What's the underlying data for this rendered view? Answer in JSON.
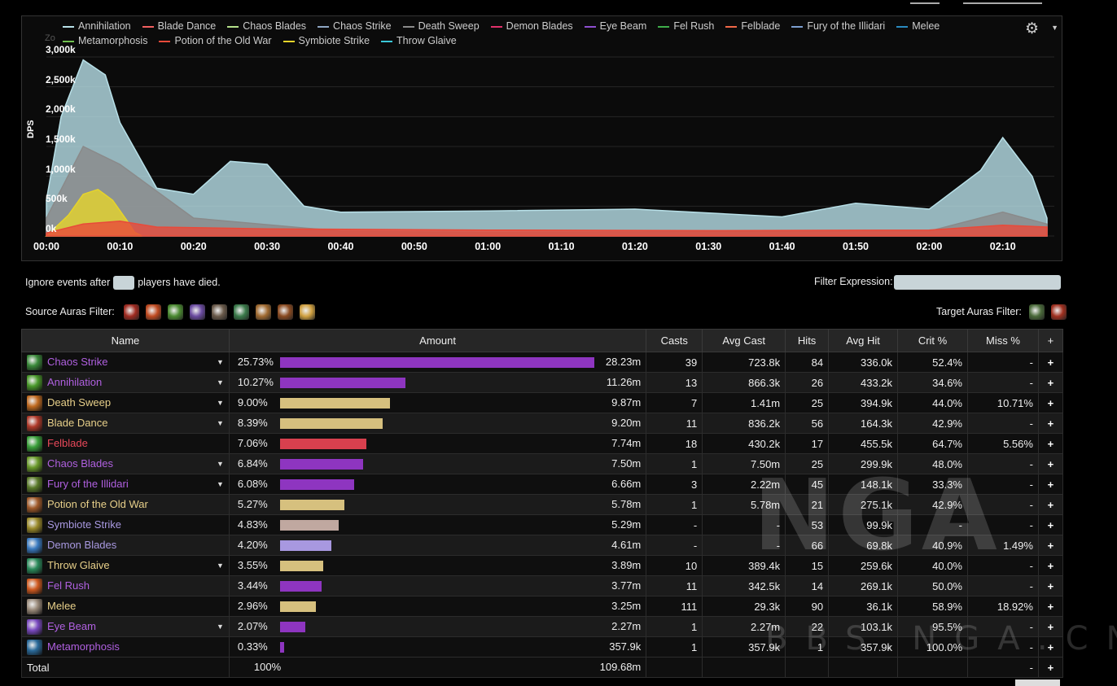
{
  "chart": {
    "ylabel": "DPS",
    "zoom_label": "Zo",
    "yticks": [
      "0k",
      "500k",
      "1,000k",
      "1,500k",
      "2,000k",
      "2,500k",
      "3,000k"
    ],
    "xticks": [
      "00:00",
      "00:10",
      "00:20",
      "00:30",
      "00:40",
      "00:50",
      "01:00",
      "01:10",
      "01:20",
      "01:30",
      "01:40",
      "01:50",
      "02:00",
      "02:10"
    ],
    "legend": [
      {
        "name": "Annihilation",
        "color": "#b8e0e8"
      },
      {
        "name": "Blade Dance",
        "color": "#f26060"
      },
      {
        "name": "Chaos Blades",
        "color": "#b5e08a"
      },
      {
        "name": "Chaos Strike",
        "color": "#8ea7c4"
      },
      {
        "name": "Death Sweep",
        "color": "#8a8a8a"
      },
      {
        "name": "Demon Blades",
        "color": "#e0306a"
      },
      {
        "name": "Eye Beam",
        "color": "#8e4fd0"
      },
      {
        "name": "Fel Rush",
        "color": "#3fae4a"
      },
      {
        "name": "Felblade",
        "color": "#f06848"
      },
      {
        "name": "Fury of the Illidari",
        "color": "#7c9ed0"
      },
      {
        "name": "Melee",
        "color": "#2a8ac0"
      },
      {
        "name": "Metamorphosis",
        "color": "#70c050"
      },
      {
        "name": "Potion of the Old War",
        "color": "#e84a3a"
      },
      {
        "name": "Symbiote Strike",
        "color": "#e6d42a"
      },
      {
        "name": "Throw Glaive",
        "color": "#3ac8d8"
      }
    ]
  },
  "chart_data": {
    "type": "area",
    "title": "",
    "xlabel": "",
    "ylabel": "DPS",
    "ylim": [
      0,
      3300
    ],
    "ylim_unit": "k",
    "xlim": [
      "00:00",
      "02:17"
    ],
    "series": [
      {
        "name": "Symbiote Strike",
        "x": [
          "00:00",
          "00:03",
          "00:05",
          "00:07",
          "00:09",
          "00:11",
          "00:12",
          "00:13"
        ],
        "values": [
          0,
          350,
          700,
          780,
          600,
          250,
          60,
          0
        ]
      },
      {
        "name": "Potion of the Old War",
        "x": [
          "00:00",
          "00:05",
          "00:10",
          "00:15",
          "00:30",
          "01:00",
          "01:30",
          "02:00",
          "02:10",
          "02:16"
        ],
        "values": [
          50,
          200,
          250,
          150,
          120,
          100,
          90,
          100,
          180,
          150
        ]
      },
      {
        "name": "Death Sweep",
        "x": [
          "00:00",
          "00:05",
          "00:10",
          "00:20",
          "00:40",
          "01:00",
          "02:00",
          "02:10",
          "02:16"
        ],
        "values": [
          300,
          1500,
          1200,
          300,
          80,
          60,
          80,
          400,
          200
        ]
      },
      {
        "name": "Annihilation",
        "x": [
          "00:00",
          "00:02",
          "00:05",
          "00:08",
          "00:10",
          "00:15",
          "00:20",
          "00:25",
          "00:30",
          "00:35",
          "00:40",
          "01:00",
          "01:20",
          "01:40",
          "01:50",
          "02:00",
          "02:07",
          "02:10",
          "02:14",
          "02:16"
        ],
        "values": [
          600,
          2000,
          2950,
          2700,
          1900,
          800,
          700,
          1250,
          1200,
          500,
          400,
          420,
          450,
          320,
          550,
          450,
          1100,
          1650,
          1000,
          300
        ]
      }
    ]
  },
  "filters": {
    "ignore_prefix": "Ignore events after",
    "ignore_suffix": "players have died.",
    "filter_expression_label": "Filter Expression:",
    "source_auras_label": "Source Auras Filter:",
    "target_auras_label": "Target Auras Filter:",
    "source_aura_colors": [
      "#a02a20",
      "#c04a20",
      "#4a8a30",
      "#6a4aa0",
      "#6a5a4a",
      "#3a7a4a",
      "#a06a30",
      "#8a4a20",
      "#d0a040"
    ],
    "target_aura_colors": [
      "#4a6a3a",
      "#a03020"
    ]
  },
  "table": {
    "headers": {
      "name": "Name",
      "amount": "Amount",
      "casts": "Casts",
      "avg_cast": "Avg Cast",
      "hits": "Hits",
      "avg_hit": "Avg Hit",
      "crit": "Crit %",
      "miss": "Miss %",
      "plus": "+"
    },
    "rows": [
      {
        "name": "Chaos Strike",
        "name_color": "#b060e0",
        "icon_color": "#3a8a3a",
        "caret": true,
        "pct": "25.73%",
        "bar_pct": 25.73,
        "bar_color": "#8e35c0",
        "amount": "28.23m",
        "casts": "39",
        "avg_cast": "723.8k",
        "hits": "84",
        "avg_hit": "336.0k",
        "crit": "52.4%",
        "miss": "-"
      },
      {
        "name": "Annihilation",
        "name_color": "#b060e0",
        "icon_color": "#4a9a2a",
        "caret": true,
        "pct": "10.27%",
        "bar_pct": 10.27,
        "bar_color": "#8e35c0",
        "amount": "11.26m",
        "casts": "13",
        "avg_cast": "866.3k",
        "hits": "26",
        "avg_hit": "433.2k",
        "crit": "34.6%",
        "miss": "-"
      },
      {
        "name": "Death Sweep",
        "name_color": "#e8d08a",
        "icon_color": "#c06a20",
        "caret": true,
        "pct": "9.00%",
        "bar_pct": 9.0,
        "bar_color": "#d6c07e",
        "amount": "9.87m",
        "casts": "7",
        "avg_cast": "1.41m",
        "hits": "25",
        "avg_hit": "394.9k",
        "crit": "44.0%",
        "miss": "10.71%"
      },
      {
        "name": "Blade Dance",
        "name_color": "#e8d08a",
        "icon_color": "#b03a2a",
        "caret": true,
        "pct": "8.39%",
        "bar_pct": 8.39,
        "bar_color": "#d6c07e",
        "amount": "9.20m",
        "casts": "11",
        "avg_cast": "836.2k",
        "hits": "56",
        "avg_hit": "164.3k",
        "crit": "42.9%",
        "miss": "-"
      },
      {
        "name": "Felblade",
        "name_color": "#e8485a",
        "icon_color": "#3aa03a",
        "caret": false,
        "pct": "7.06%",
        "bar_pct": 7.06,
        "bar_color": "#d8404e",
        "amount": "7.74m",
        "casts": "18",
        "avg_cast": "430.2k",
        "hits": "17",
        "avg_hit": "455.5k",
        "crit": "64.7%",
        "miss": "5.56%"
      },
      {
        "name": "Chaos Blades",
        "name_color": "#b060e0",
        "icon_color": "#6a9a2a",
        "caret": true,
        "pct": "6.84%",
        "bar_pct": 6.84,
        "bar_color": "#8e35c0",
        "amount": "7.50m",
        "casts": "1",
        "avg_cast": "7.50m",
        "hits": "25",
        "avg_hit": "299.9k",
        "crit": "48.0%",
        "miss": "-"
      },
      {
        "name": "Fury of the Illidari",
        "name_color": "#b060e0",
        "icon_color": "#5a7a2a",
        "caret": true,
        "pct": "6.08%",
        "bar_pct": 6.08,
        "bar_color": "#8e35c0",
        "amount": "6.66m",
        "casts": "3",
        "avg_cast": "2.22m",
        "hits": "45",
        "avg_hit": "148.1k",
        "crit": "33.3%",
        "miss": "-"
      },
      {
        "name": "Potion of the Old War",
        "name_color": "#e8d08a",
        "icon_color": "#a05a2a",
        "caret": false,
        "pct": "5.27%",
        "bar_pct": 5.27,
        "bar_color": "#d6c07e",
        "amount": "5.78m",
        "casts": "1",
        "avg_cast": "5.78m",
        "hits": "21",
        "avg_hit": "275.1k",
        "crit": "42.9%",
        "miss": "-"
      },
      {
        "name": "Symbiote Strike",
        "name_color": "#a898e0",
        "icon_color": "#9a8a2a",
        "caret": false,
        "pct": "4.83%",
        "bar_pct": 4.83,
        "bar_color": "#c0a8a0",
        "amount": "5.29m",
        "casts": "-",
        "avg_cast": "-",
        "hits": "53",
        "avg_hit": "99.9k",
        "crit": "-",
        "miss": "-"
      },
      {
        "name": "Demon Blades",
        "name_color": "#a898e0",
        "icon_color": "#3a7ac0",
        "caret": false,
        "pct": "4.20%",
        "bar_pct": 4.2,
        "bar_color": "#a898e0",
        "amount": "4.61m",
        "casts": "-",
        "avg_cast": "-",
        "hits": "66",
        "avg_hit": "69.8k",
        "crit": "40.9%",
        "miss": "1.49%"
      },
      {
        "name": "Throw Glaive",
        "name_color": "#e8d08a",
        "icon_color": "#2a8a5a",
        "caret": true,
        "pct": "3.55%",
        "bar_pct": 3.55,
        "bar_color": "#d6c07e",
        "amount": "3.89m",
        "casts": "10",
        "avg_cast": "389.4k",
        "hits": "15",
        "avg_hit": "259.6k",
        "crit": "40.0%",
        "miss": "-"
      },
      {
        "name": "Fel Rush",
        "name_color": "#b060e0",
        "icon_color": "#d05a20",
        "caret": false,
        "pct": "3.44%",
        "bar_pct": 3.44,
        "bar_color": "#8e35c0",
        "amount": "3.77m",
        "casts": "11",
        "avg_cast": "342.5k",
        "hits": "14",
        "avg_hit": "269.1k",
        "crit": "50.0%",
        "miss": "-"
      },
      {
        "name": "Melee",
        "name_color": "#e8d08a",
        "icon_color": "#9a8a7a",
        "caret": false,
        "pct": "2.96%",
        "bar_pct": 2.96,
        "bar_color": "#d6c07e",
        "amount": "3.25m",
        "casts": "111",
        "avg_cast": "29.3k",
        "hits": "90",
        "avg_hit": "36.1k",
        "crit": "58.9%",
        "miss": "18.92%"
      },
      {
        "name": "Eye Beam",
        "name_color": "#b060e0",
        "icon_color": "#7a4ac0",
        "caret": true,
        "pct": "2.07%",
        "bar_pct": 2.07,
        "bar_color": "#8e35c0",
        "amount": "2.27m",
        "casts": "1",
        "avg_cast": "2.27m",
        "hits": "22",
        "avg_hit": "103.1k",
        "crit": "95.5%",
        "miss": "-"
      },
      {
        "name": "Metamorphosis",
        "name_color": "#b060e0",
        "icon_color": "#2a6a9a",
        "caret": false,
        "pct": "0.33%",
        "bar_pct": 0.33,
        "bar_color": "#8e35c0",
        "amount": "357.9k",
        "casts": "1",
        "avg_cast": "357.9k",
        "hits": "1",
        "avg_hit": "357.9k",
        "crit": "100.0%",
        "miss": "-"
      }
    ],
    "total": {
      "name": "Total",
      "pct": "100%",
      "amount": "109.68m",
      "miss": "-"
    }
  },
  "watermark": {
    "main": "NGA",
    "sub": "BBS.NGA.CN"
  }
}
